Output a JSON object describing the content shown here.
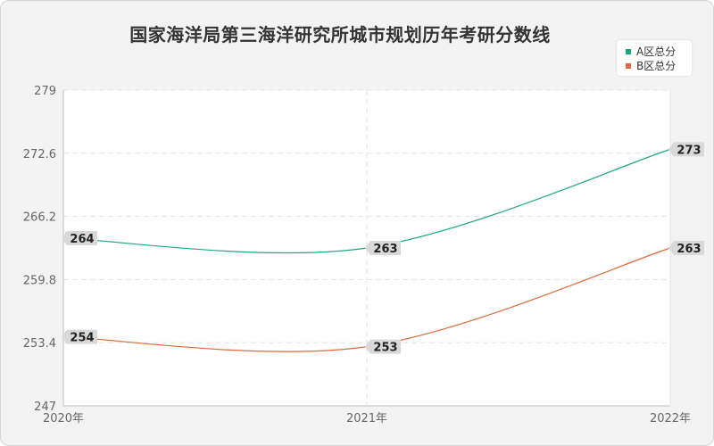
{
  "chart_data": {
    "type": "line",
    "title": "国家海洋局第三海洋研究所城市规划历年考研分数线",
    "categories": [
      "2020年",
      "2021年",
      "2022年"
    ],
    "ylim": [
      247,
      279
    ],
    "yticks": [
      "247",
      "253.4",
      "259.8",
      "266.2",
      "272.6",
      "279"
    ],
    "grid": true,
    "legend_position": "top-right",
    "series": [
      {
        "name": "A区总分",
        "values": [
          264,
          263,
          273
        ],
        "color": "#1ba784"
      },
      {
        "name": "B区总分",
        "values": [
          254,
          253,
          263
        ],
        "color": "#e0693a"
      }
    ]
  }
}
